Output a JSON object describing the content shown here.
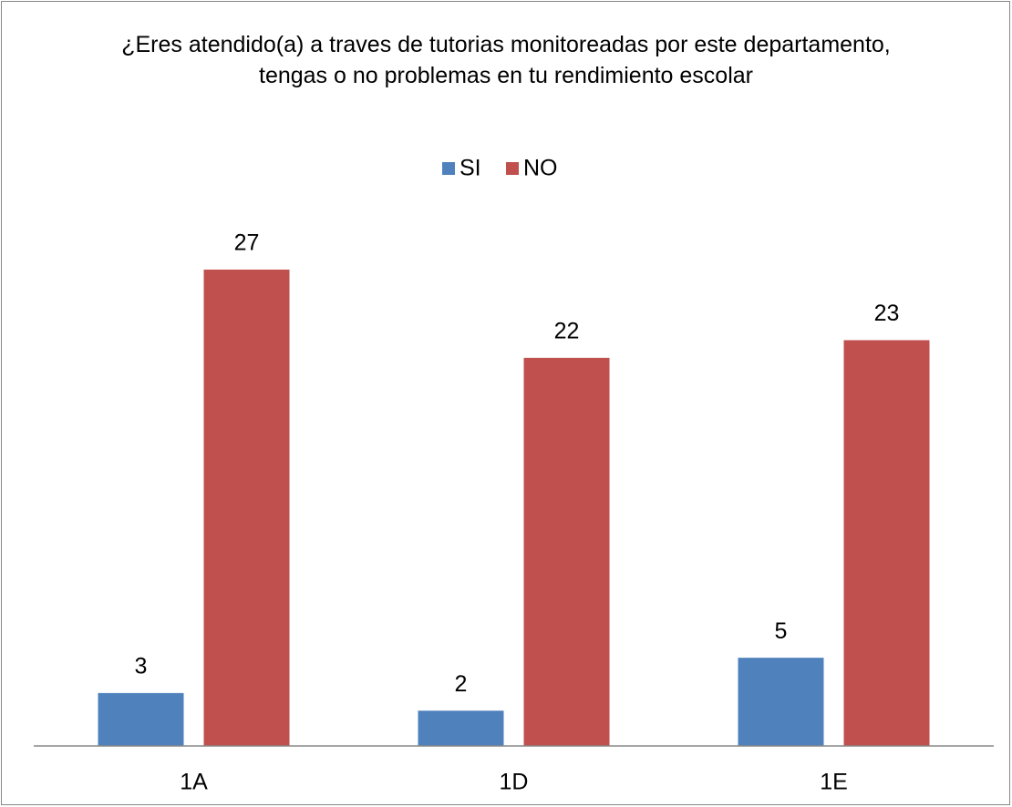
{
  "chart_data": {
    "type": "bar",
    "title": "¿Eres atendido(a) a traves de tutorias monitoreadas por este departamento, tengas o no problemas en tu rendimiento escolar",
    "categories": [
      "1A",
      "1D",
      "1E"
    ],
    "series": [
      {
        "name": "SI",
        "color": "#4f81bd",
        "values": [
          3,
          2,
          5
        ]
      },
      {
        "name": "NO",
        "color": "#c0504d",
        "values": [
          27,
          22,
          23
        ]
      }
    ],
    "legend": "top"
  }
}
